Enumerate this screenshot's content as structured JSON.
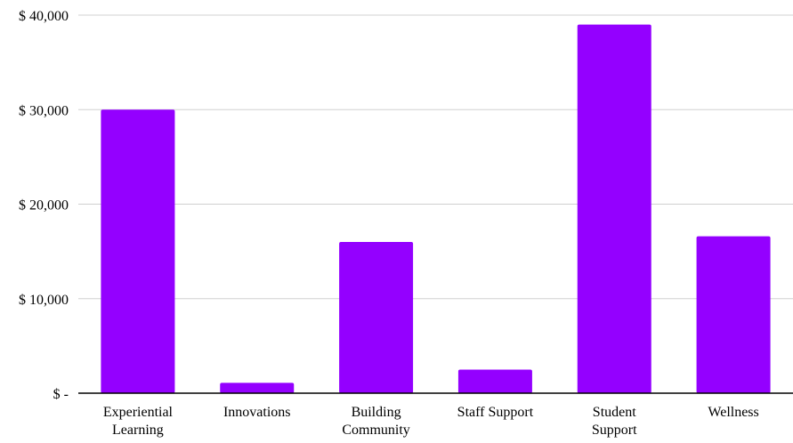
{
  "chart_data": {
    "type": "bar",
    "title": "",
    "xlabel": "",
    "ylabel": "",
    "categories": [
      [
        "Experiential",
        "Learning"
      ],
      [
        "Innovations"
      ],
      [
        "Building",
        "Community"
      ],
      [
        "Staff Support"
      ],
      [
        "Student",
        "Support"
      ],
      [
        "Wellness"
      ]
    ],
    "values": [
      30000,
      1100,
      16000,
      2500,
      39000,
      16600
    ],
    "ylim": [
      0,
      40000
    ],
    "yticks": [
      0,
      10000,
      20000,
      30000,
      40000
    ],
    "ytick_labels": [
      "$ -",
      "$ 10,000",
      "$ 20,000",
      "$ 30,000",
      "$ 40,000"
    ],
    "grid": true,
    "legend": "none",
    "colors": {
      "bar": "#9400ff",
      "grid": "#d0d0d0",
      "axis": "#000000",
      "text": "#000000"
    }
  }
}
